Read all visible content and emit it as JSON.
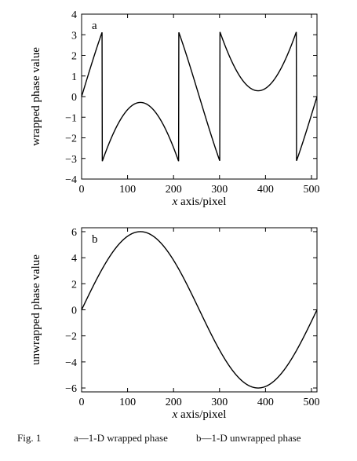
{
  "chart_data": [
    {
      "type": "line",
      "panel_label": "a",
      "xlabel": "x axis/pixel",
      "ylabel": "wrapped phase value",
      "xlim": [
        0,
        512
      ],
      "ylim": [
        -4,
        4
      ],
      "xticks": [
        0,
        100,
        200,
        300,
        400,
        500
      ],
      "yticks": [
        -4,
        -3,
        -2,
        -1,
        0,
        1,
        2,
        3,
        4
      ],
      "grid": false,
      "series": [
        {
          "formula": "wrap(6*sin(2*pi*x/512)) into (-pi, pi]",
          "x": [
            0,
            20,
            40,
            44,
            60,
            80,
            100,
            120,
            128,
            140,
            160,
            180,
            200,
            212,
            216,
            240,
            260,
            280,
            300,
            302,
            320,
            340,
            360,
            380,
            384,
            400,
            420,
            440,
            460,
            468,
            472,
            490,
            500,
            512
          ],
          "y": [
            0,
            1.46,
            2.87,
            3.14,
            -2.55,
            -1.55,
            -0.92,
            -0.37,
            -0.28,
            -0.38,
            -0.86,
            -1.62,
            -2.58,
            -3.14,
            2.79,
            1.1,
            -0.37,
            -1.8,
            -3.14,
            3.14,
            1.75,
            0.89,
            0.47,
            0.32,
            0.28,
            0.46,
            1.02,
            1.89,
            2.98,
            -3.14,
            2.85,
            1.3,
            0.17,
            0
          ]
        }
      ]
    },
    {
      "type": "line",
      "panel_label": "b",
      "xlabel": "x axis/pixel",
      "ylabel": "unwrapped phase value",
      "xlim": [
        0,
        512
      ],
      "ylim": [
        -6.3,
        6.3
      ],
      "xticks": [
        0,
        100,
        200,
        300,
        400,
        500
      ],
      "yticks": [
        -6,
        -4,
        -2,
        0,
        2,
        4,
        6
      ],
      "grid": false,
      "series": [
        {
          "formula": "6*sin(2*pi*x/512)",
          "x": [
            0,
            32,
            64,
            96,
            128,
            160,
            192,
            224,
            256,
            288,
            320,
            352,
            384,
            416,
            448,
            480,
            512
          ],
          "y": [
            0,
            2.3,
            4.24,
            5.54,
            6.0,
            5.54,
            4.24,
            2.3,
            0,
            -2.3,
            -4.24,
            -5.54,
            -6.0,
            -5.54,
            -4.24,
            -2.3,
            0
          ]
        }
      ]
    }
  ],
  "caption": {
    "fig": "Fig. 1",
    "part_a": "a—1-D wrapped phase",
    "part_b": "b—1-D unwrapped phase"
  }
}
